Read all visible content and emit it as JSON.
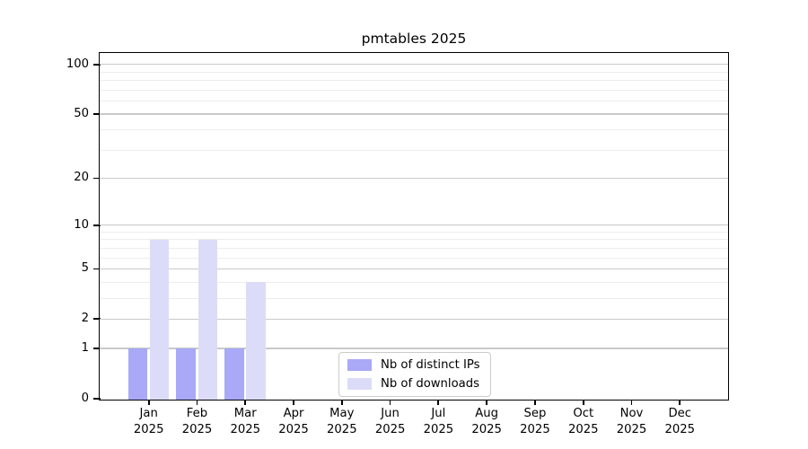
{
  "chart_data": {
    "type": "bar",
    "title": "pmtables 2025",
    "categories": [
      "Jan",
      "Feb",
      "Mar",
      "Apr",
      "May",
      "Jun",
      "Jul",
      "Aug",
      "Sep",
      "Oct",
      "Nov",
      "Dec"
    ],
    "category_subline": "2025",
    "series": [
      {
        "name": "Nb of distinct IPs",
        "color": "#a9a9f7",
        "values": [
          1,
          1,
          1,
          0,
          0,
          0,
          0,
          0,
          0,
          0,
          0,
          0
        ]
      },
      {
        "name": "Nb of downloads",
        "color": "#dcdcf8",
        "values": [
          8,
          8,
          4,
          0,
          0,
          0,
          0,
          0,
          0,
          0,
          0,
          0
        ]
      }
    ],
    "scale": "log1p",
    "y_major_ticks": [
      0,
      1,
      2,
      5,
      10,
      20,
      50,
      100
    ],
    "y_minor_gridlines": [
      3,
      4,
      6,
      7,
      8,
      9,
      30,
      40,
      60,
      70,
      80,
      90
    ],
    "ylim": [
      0,
      120
    ],
    "xlabel": "",
    "ylabel": "",
    "grid": "horizontal",
    "legend_position": "lower center inside"
  },
  "colors": {
    "background": "#ffffff",
    "spine": "#000000",
    "text": "#000000",
    "major_grid": "#c9c9c9",
    "minor_grid": "#ededed",
    "legend_border": "#cbcbcb"
  }
}
